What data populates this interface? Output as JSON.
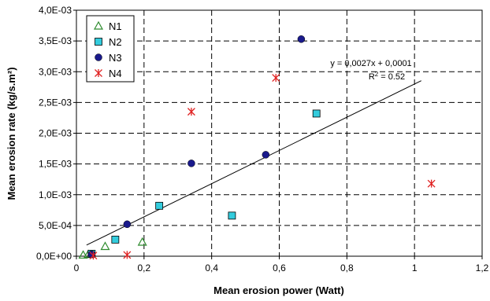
{
  "chart_data": {
    "type": "scatter",
    "xlabel": "Mean erosion power (Watt)",
    "ylabel": "Mean erosion rate (kg/s.m²)",
    "xlim": [
      0,
      1.2
    ],
    "ylim": [
      0,
      0.004
    ],
    "x_ticks": [
      "0",
      "0,2",
      "0,4",
      "0,6",
      "0,8",
      "1",
      "1,2"
    ],
    "y_ticks": [
      "0,0E+00",
      "5,0E-04",
      "1,0E-03",
      "1,5E-03",
      "2,0E-03",
      "2,5E-03",
      "3,0E-03",
      "3,5E-03",
      "4,0E-03"
    ],
    "grid": true,
    "legend_position": "top-left",
    "series": [
      {
        "name": "N1",
        "marker": "triangle",
        "color": "#2e8b2e",
        "points": [
          [
            0.02,
            2e-05
          ],
          [
            0.035,
            3e-05
          ],
          [
            0.085,
            0.00016
          ],
          [
            0.195,
            0.00023
          ]
        ]
      },
      {
        "name": "N2",
        "marker": "square",
        "color": "#33ccdd",
        "points": [
          [
            0.045,
            4e-05
          ],
          [
            0.115,
            0.00027
          ],
          [
            0.245,
            0.00082
          ],
          [
            0.46,
            0.00066
          ],
          [
            0.71,
            0.00232
          ]
        ]
      },
      {
        "name": "N3",
        "marker": "circle",
        "color": "#1a1a8c",
        "points": [
          [
            0.045,
            3e-05
          ],
          [
            0.15,
            0.00052
          ],
          [
            0.34,
            0.00151
          ],
          [
            0.56,
            0.00165
          ],
          [
            0.665,
            0.00353
          ]
        ]
      },
      {
        "name": "N4",
        "marker": "star",
        "color": "#e02020",
        "points": [
          [
            0.05,
            1e-05
          ],
          [
            0.15,
            2e-05
          ],
          [
            0.34,
            0.00235
          ],
          [
            0.59,
            0.0029
          ],
          [
            1.05,
            0.00118
          ]
        ]
      }
    ],
    "trendline": {
      "x_range": [
        0.03,
        1.02
      ],
      "slope": 0.0027,
      "intercept": 0.0001,
      "equation": "y = 0,0027x + 0,0001",
      "r2_prefix": "R",
      "r2_exp": "2",
      "r2_value": " = 0.52"
    }
  }
}
